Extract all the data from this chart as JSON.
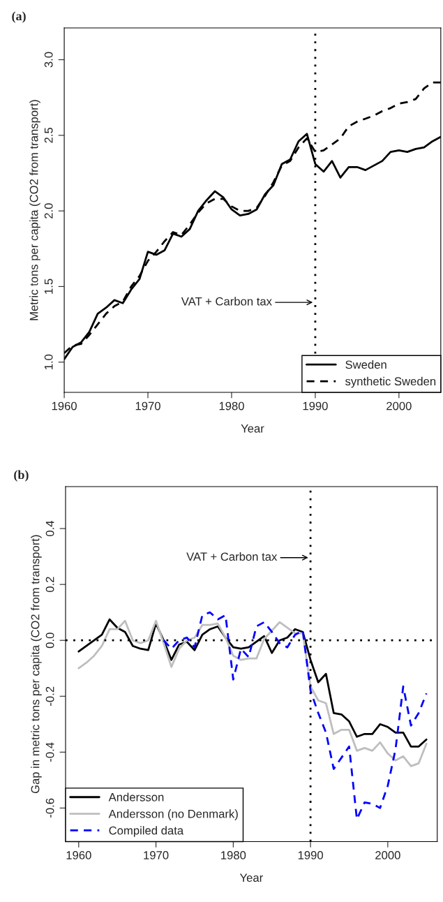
{
  "chart_data": [
    {
      "type": "line",
      "title": "(a)",
      "xlabel": "Year",
      "ylabel": "Metric tons per capita (CO2 from transport)",
      "x": [
        1960,
        1961,
        1962,
        1963,
        1964,
        1965,
        1966,
        1967,
        1968,
        1969,
        1970,
        1971,
        1972,
        1973,
        1974,
        1975,
        1976,
        1977,
        1978,
        1979,
        1980,
        1981,
        1982,
        1983,
        1984,
        1985,
        1986,
        1987,
        1988,
        1989,
        1990,
        1991,
        1992,
        1993,
        1994,
        1995,
        1996,
        1997,
        1998,
        1999,
        2000,
        2001,
        2002,
        2003,
        2004,
        2005
      ],
      "series": [
        {
          "name": "Sweden",
          "color": "#000000",
          "line_style": "solid",
          "values": [
            1.02,
            1.1,
            1.13,
            1.2,
            1.32,
            1.36,
            1.41,
            1.39,
            1.48,
            1.55,
            1.73,
            1.71,
            1.74,
            1.85,
            1.83,
            1.88,
            2.0,
            2.07,
            2.13,
            2.09,
            2.01,
            1.97,
            1.98,
            2.01,
            2.11,
            2.17,
            2.31,
            2.34,
            2.46,
            2.51,
            2.31,
            2.26,
            2.33,
            2.22,
            2.29,
            2.29,
            2.27,
            2.3,
            2.33,
            2.39,
            2.4,
            2.39,
            2.41,
            2.42,
            2.46,
            2.49
          ]
        },
        {
          "name": "synthetic Sweden",
          "color": "#000000",
          "line_style": "dashed",
          "values": [
            1.06,
            1.11,
            1.12,
            1.18,
            1.25,
            1.32,
            1.37,
            1.4,
            1.5,
            1.57,
            1.67,
            1.73,
            1.8,
            1.86,
            1.84,
            1.91,
            1.99,
            2.05,
            2.08,
            2.08,
            2.03,
            2.0,
            2.0,
            2.02,
            2.1,
            2.19,
            2.3,
            2.33,
            2.42,
            2.48,
            2.39,
            2.4,
            2.44,
            2.48,
            2.56,
            2.59,
            2.61,
            2.63,
            2.66,
            2.68,
            2.71,
            2.72,
            2.74,
            2.81,
            2.85,
            2.85
          ]
        }
      ],
      "xlim": [
        1960,
        2005
      ],
      "xticks": [
        1960,
        1970,
        1980,
        1990,
        2000
      ],
      "ylim": [
        0.8,
        3.21
      ],
      "yticks": [
        {
          "value": 1,
          "label": "1.0"
        },
        1.5,
        {
          "value": 2,
          "label": "2.0"
        },
        2.5,
        {
          "value": 3,
          "label": "3.0"
        }
      ],
      "ref_lines": [
        {
          "axis": "x",
          "value": 1990,
          "color": "#000000",
          "line_style": "dotted"
        }
      ],
      "annotations": [
        "VAT + Carbon tax"
      ],
      "legend": "bottom right",
      "grid": false,
      "marker": "none"
    },
    {
      "type": "line",
      "title": "(b)",
      "xlabel": "Year",
      "ylabel": "Gap in metric tons per capita (CO2 from transport)",
      "x": [
        1960,
        1961,
        1962,
        1963,
        1964,
        1965,
        1966,
        1967,
        1968,
        1969,
        1970,
        1971,
        1972,
        1973,
        1974,
        1975,
        1976,
        1977,
        1978,
        1979,
        1980,
        1981,
        1982,
        1983,
        1984,
        1985,
        1986,
        1987,
        1988,
        1989,
        1990,
        1991,
        1992,
        1993,
        1994,
        1995,
        1996,
        1997,
        1998,
        1999,
        2000,
        2001,
        2002,
        2003,
        2004,
        2005
      ],
      "series": [
        {
          "name": "Andersson",
          "color": "#000000",
          "line_style": "solid",
          "values": [
            -0.04,
            -0.02,
            0.0,
            0.02,
            0.075,
            0.045,
            0.03,
            -0.02,
            -0.03,
            -0.035,
            0.06,
            0.0,
            -0.07,
            -0.015,
            -0.005,
            -0.035,
            0.02,
            0.04,
            0.05,
            0.01,
            -0.025,
            -0.03,
            -0.025,
            -0.005,
            0.015,
            -0.045,
            0.0,
            0.01,
            0.04,
            0.03,
            -0.07,
            -0.15,
            -0.12,
            -0.26,
            -0.265,
            -0.29,
            -0.345,
            -0.335,
            -0.335,
            -0.3,
            -0.31,
            -0.33,
            -0.33,
            -0.38,
            -0.38,
            -0.355
          ]
        },
        {
          "name": "Andersson (no Denmark)",
          "color": "#bebebe",
          "line_style": "solid",
          "values": [
            -0.1,
            -0.08,
            -0.055,
            -0.02,
            0.04,
            0.04,
            0.07,
            0.0,
            -0.01,
            0.0,
            0.07,
            -0.01,
            -0.095,
            -0.03,
            0.0,
            0.01,
            0.055,
            0.055,
            0.06,
            0.01,
            -0.055,
            -0.07,
            -0.065,
            -0.065,
            0.005,
            0.035,
            0.065,
            0.045,
            0.025,
            0.025,
            -0.165,
            -0.215,
            -0.225,
            -0.335,
            -0.32,
            -0.32,
            -0.395,
            -0.385,
            -0.395,
            -0.365,
            -0.405,
            -0.43,
            -0.415,
            -0.45,
            -0.44,
            -0.37
          ]
        },
        {
          "name": "Compiled data",
          "color": "#0000ff",
          "line_style": "dashed",
          "values": [
            null,
            null,
            null,
            null,
            null,
            null,
            null,
            null,
            null,
            null,
            null,
            0.0,
            -0.03,
            0.0,
            0.01,
            -0.025,
            0.09,
            0.1,
            0.075,
            0.09,
            -0.14,
            -0.03,
            -0.06,
            0.05,
            0.065,
            0.03,
            -0.01,
            -0.025,
            0.02,
            0.035,
            -0.18,
            -0.26,
            -0.33,
            -0.46,
            -0.42,
            -0.38,
            -0.64,
            -0.58,
            -0.585,
            -0.6,
            -0.52,
            -0.39,
            -0.165,
            -0.305,
            -0.26,
            -0.19
          ]
        }
      ],
      "xlim": [
        1958.3,
        2006.4
      ],
      "xticks": [
        1960,
        1970,
        1980,
        1990,
        2000
      ],
      "ylim": [
        -0.72,
        0.55
      ],
      "yticks": [
        -0.6,
        -0.4,
        -0.2,
        {
          "value": 0,
          "label": "0.0"
        },
        0.2,
        0.4
      ],
      "ref_lines": [
        {
          "axis": "x",
          "value": 1990,
          "color": "#000000",
          "line_style": "dotted"
        },
        {
          "axis": "y",
          "value": 0,
          "color": "#000000",
          "line_style": "dotted"
        }
      ],
      "annotations": [
        "VAT + Carbon tax"
      ],
      "legend": "bottom left",
      "grid": false,
      "marker": "none"
    }
  ]
}
